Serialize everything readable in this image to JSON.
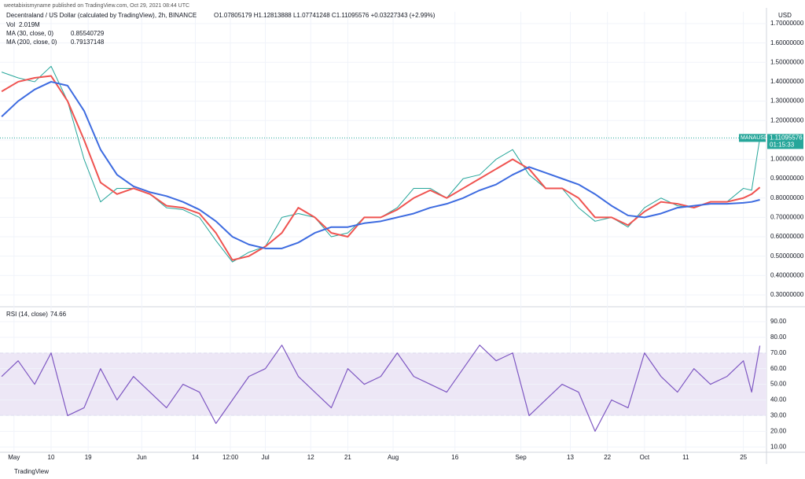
{
  "header": "weetabixismyname published on TradingView.com, Oct 29, 2021 08:44 UTC",
  "footer": "TradingView",
  "chart_data": [
    {
      "type": "line",
      "title": "Decentraland / US Dollar (calculated by TradingView), 2h, BINANCE",
      "ohlc": "O1.07805179 H1.12813888 L1.07741248 C1.11095576 +0.03227343 (+2.99%)",
      "volume_label": "Vol",
      "volume_value": "2.019M",
      "axis_unit": "USD",
      "symbol": "MANAUSD",
      "last_price": "1.11095576",
      "countdown": "01:15:33",
      "color": "#26a69a",
      "x": [
        -3,
        1,
        5,
        9,
        13,
        17,
        21,
        25,
        29,
        33,
        37,
        41,
        45,
        49,
        53,
        57,
        61,
        65,
        69,
        73,
        77,
        81,
        85,
        89,
        93,
        97,
        101,
        105,
        109,
        113,
        117,
        121,
        125,
        129,
        133,
        137,
        141,
        145,
        149,
        153,
        157,
        161,
        165,
        169,
        173,
        177,
        179,
        181
      ],
      "values": [
        1.45,
        1.42,
        1.4,
        1.48,
        1.3,
        1.0,
        0.78,
        0.85,
        0.85,
        0.82,
        0.75,
        0.74,
        0.7,
        0.58,
        0.47,
        0.52,
        0.55,
        0.7,
        0.72,
        0.7,
        0.6,
        0.62,
        0.7,
        0.7,
        0.75,
        0.85,
        0.85,
        0.8,
        0.9,
        0.92,
        1.0,
        1.05,
        0.92,
        0.85,
        0.85,
        0.75,
        0.68,
        0.7,
        0.65,
        0.75,
        0.8,
        0.76,
        0.75,
        0.78,
        0.78,
        0.85,
        0.84,
        1.11
      ],
      "series": [
        {
          "name": "MA (30, close, 0)",
          "value_text": "0.85540729",
          "color": "#ef5350",
          "values": [
            1.35,
            1.4,
            1.42,
            1.43,
            1.3,
            1.1,
            0.88,
            0.82,
            0.85,
            0.82,
            0.76,
            0.75,
            0.72,
            0.62,
            0.48,
            0.5,
            0.55,
            0.62,
            0.75,
            0.7,
            0.62,
            0.6,
            0.7,
            0.7,
            0.74,
            0.8,
            0.84,
            0.8,
            0.85,
            0.9,
            0.95,
            1.0,
            0.95,
            0.85,
            0.85,
            0.8,
            0.7,
            0.7,
            0.66,
            0.73,
            0.78,
            0.77,
            0.75,
            0.78,
            0.78,
            0.8,
            0.82,
            0.855
          ]
        },
        {
          "name": "MA (200, close, 0)",
          "value_text": "0.79137148",
          "color": "#3d6be0",
          "values": [
            1.22,
            1.3,
            1.36,
            1.4,
            1.38,
            1.25,
            1.05,
            0.92,
            0.86,
            0.83,
            0.81,
            0.78,
            0.74,
            0.68,
            0.6,
            0.56,
            0.54,
            0.54,
            0.57,
            0.62,
            0.65,
            0.65,
            0.67,
            0.68,
            0.7,
            0.72,
            0.75,
            0.77,
            0.8,
            0.84,
            0.87,
            0.92,
            0.96,
            0.93,
            0.9,
            0.87,
            0.82,
            0.76,
            0.71,
            0.7,
            0.72,
            0.75,
            0.76,
            0.77,
            0.77,
            0.775,
            0.78,
            0.791
          ]
        }
      ],
      "xlim": [
        -3.4,
        182.6
      ],
      "xticks": [
        {
          "value": 0,
          "label": "May"
        },
        {
          "value": 9,
          "label": "10"
        },
        {
          "value": 18,
          "label": "19"
        },
        {
          "value": 31,
          "label": "Jun"
        },
        {
          "value": 44,
          "label": "14"
        },
        {
          "value": 52.5,
          "label": "12:00"
        },
        {
          "value": 61,
          "label": "Jul"
        },
        {
          "value": 72,
          "label": "12"
        },
        {
          "value": 81,
          "label": "21"
        },
        {
          "value": 92,
          "label": "Aug"
        },
        {
          "value": 107,
          "label": "16"
        },
        {
          "value": 123,
          "label": "Sep"
        },
        {
          "value": 135,
          "label": "13"
        },
        {
          "value": 144,
          "label": "22"
        },
        {
          "value": 153,
          "label": "Oct"
        },
        {
          "value": 163,
          "label": "11"
        },
        {
          "value": 177,
          "label": "25"
        }
      ],
      "ylim": [
        0.247,
        1.761
      ],
      "yticks": [
        {
          "value": 0.3,
          "label": "0.30000000"
        },
        {
          "value": 0.4,
          "label": "0.40000000"
        },
        {
          "value": 0.5,
          "label": "0.50000000"
        },
        {
          "value": 0.6,
          "label": "0.60000000"
        },
        {
          "value": 0.7,
          "label": "0.70000000"
        },
        {
          "value": 0.8,
          "label": "0.80000000"
        },
        {
          "value": 0.9,
          "label": "0.90000000"
        },
        {
          "value": 1.0,
          "label": "1.00000000"
        },
        {
          "value": 1.1,
          "label": "1.10000000"
        },
        {
          "value": 1.2,
          "label": "1.20000000"
        },
        {
          "value": 1.3,
          "label": "1.30000000"
        },
        {
          "value": 1.4,
          "label": "1.40000000"
        },
        {
          "value": 1.5,
          "label": "1.50000000"
        },
        {
          "value": 1.6,
          "label": "1.60000000"
        },
        {
          "value": 1.7,
          "label": "1.70000000"
        }
      ],
      "grid": true
    },
    {
      "type": "line",
      "title": "RSI (14, close)",
      "value_text": "74.66",
      "color": "#7e57c2",
      "band": [
        30,
        70
      ],
      "band_color": "#ede7f6",
      "x": [
        -3,
        1,
        5,
        9,
        13,
        17,
        21,
        25,
        29,
        33,
        37,
        41,
        45,
        49,
        53,
        57,
        61,
        65,
        69,
        73,
        77,
        81,
        85,
        89,
        93,
        97,
        101,
        105,
        109,
        113,
        117,
        121,
        125,
        129,
        133,
        137,
        141,
        145,
        149,
        153,
        157,
        161,
        165,
        169,
        173,
        177,
        179,
        181
      ],
      "values": [
        55,
        65,
        50,
        70,
        30,
        35,
        60,
        40,
        55,
        45,
        35,
        50,
        45,
        25,
        40,
        55,
        60,
        75,
        55,
        45,
        35,
        60,
        50,
        55,
        70,
        55,
        50,
        45,
        60,
        75,
        65,
        70,
        30,
        40,
        50,
        45,
        20,
        40,
        35,
        70,
        55,
        45,
        60,
        50,
        55,
        65,
        45,
        74.66
      ],
      "xlim": [
        -3.4,
        182.6
      ],
      "ylim": [
        6.6,
        97
      ],
      "yticks": [
        {
          "value": 10,
          "label": "10.00"
        },
        {
          "value": 20,
          "label": "20.00"
        },
        {
          "value": 30,
          "label": "30.00"
        },
        {
          "value": 40,
          "label": "40.00"
        },
        {
          "value": 50,
          "label": "50.00"
        },
        {
          "value": 60,
          "label": "60.00"
        },
        {
          "value": 70,
          "label": "70.00"
        },
        {
          "value": 80,
          "label": "80.00"
        },
        {
          "value": 90,
          "label": "90.00"
        }
      ],
      "grid": true
    }
  ]
}
